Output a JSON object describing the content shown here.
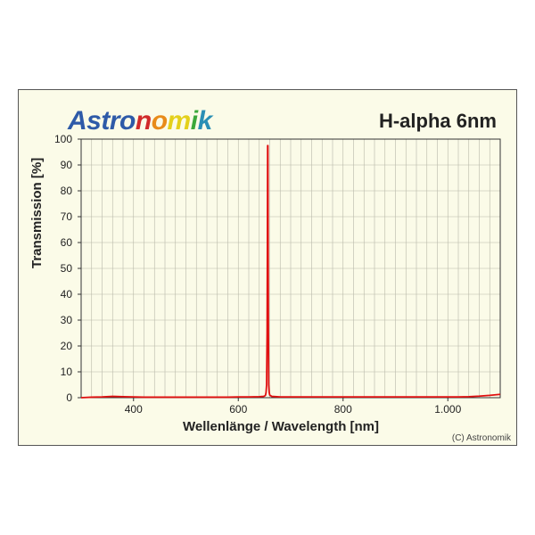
{
  "brand": {
    "text": "Astronomik",
    "letter_colors": [
      "#2e5aa8",
      "#2e5aa8",
      "#2e5aa8",
      "#2e5aa8",
      "#2e5aa8",
      "#d12a2a",
      "#e88b1a",
      "#e4d01a",
      "#3aa83a",
      "#2a8fb5",
      "#3a3aa8"
    ]
  },
  "product_title": "H-alpha 6nm",
  "copyright": "(C) Astronomik",
  "chart": {
    "type": "line",
    "background_color": "#fbfbe8",
    "frame_border_color": "#555555",
    "plot_bg": "#fbfbe8",
    "grid_color": "#b8b8a8",
    "grid_width": 0.6,
    "axis_color": "#333333",
    "y_label": "Transmission [%]",
    "x_label": "Wellenlänge / Wavelength [nm]",
    "label_fontsize": 15,
    "label_fontweight": "bold",
    "tick_fontsize": 12,
    "xlim": [
      300,
      1100
    ],
    "ylim": [
      0,
      100
    ],
    "x_ticks": [
      400,
      600,
      800,
      1000
    ],
    "x_tick_labels": [
      "400",
      "600",
      "800",
      "1.000"
    ],
    "x_minor_step": 20,
    "y_ticks": [
      0,
      10,
      20,
      30,
      40,
      50,
      60,
      70,
      80,
      90,
      100
    ],
    "series": {
      "color": "#e01010",
      "line_width": 1.8,
      "points": [
        [
          300,
          0.0
        ],
        [
          320,
          0.2
        ],
        [
          340,
          0.3
        ],
        [
          360,
          0.5
        ],
        [
          380,
          0.4
        ],
        [
          400,
          0.3
        ],
        [
          420,
          0.2
        ],
        [
          440,
          0.2
        ],
        [
          460,
          0.2
        ],
        [
          480,
          0.2
        ],
        [
          500,
          0.2
        ],
        [
          520,
          0.2
        ],
        [
          540,
          0.2
        ],
        [
          560,
          0.2
        ],
        [
          580,
          0.2
        ],
        [
          600,
          0.3
        ],
        [
          620,
          0.3
        ],
        [
          640,
          0.4
        ],
        [
          648,
          0.5
        ],
        [
          650,
          0.6
        ],
        [
          652,
          1.0
        ],
        [
          653,
          2.0
        ],
        [
          654,
          5.0
        ],
        [
          655,
          25.0
        ],
        [
          655.5,
          55.0
        ],
        [
          656,
          97.5
        ],
        [
          656.5,
          97.5
        ],
        [
          657,
          55.0
        ],
        [
          657.5,
          25.0
        ],
        [
          658,
          5.0
        ],
        [
          659,
          2.0
        ],
        [
          660,
          1.0
        ],
        [
          664,
          0.5
        ],
        [
          680,
          0.3
        ],
        [
          700,
          0.3
        ],
        [
          720,
          0.3
        ],
        [
          740,
          0.3
        ],
        [
          760,
          0.3
        ],
        [
          780,
          0.3
        ],
        [
          800,
          0.3
        ],
        [
          820,
          0.3
        ],
        [
          840,
          0.3
        ],
        [
          860,
          0.3
        ],
        [
          880,
          0.3
        ],
        [
          900,
          0.3
        ],
        [
          920,
          0.3
        ],
        [
          940,
          0.3
        ],
        [
          960,
          0.3
        ],
        [
          980,
          0.3
        ],
        [
          1000,
          0.3
        ],
        [
          1020,
          0.3
        ],
        [
          1040,
          0.4
        ],
        [
          1060,
          0.6
        ],
        [
          1080,
          0.9
        ],
        [
          1100,
          1.3
        ]
      ]
    }
  }
}
